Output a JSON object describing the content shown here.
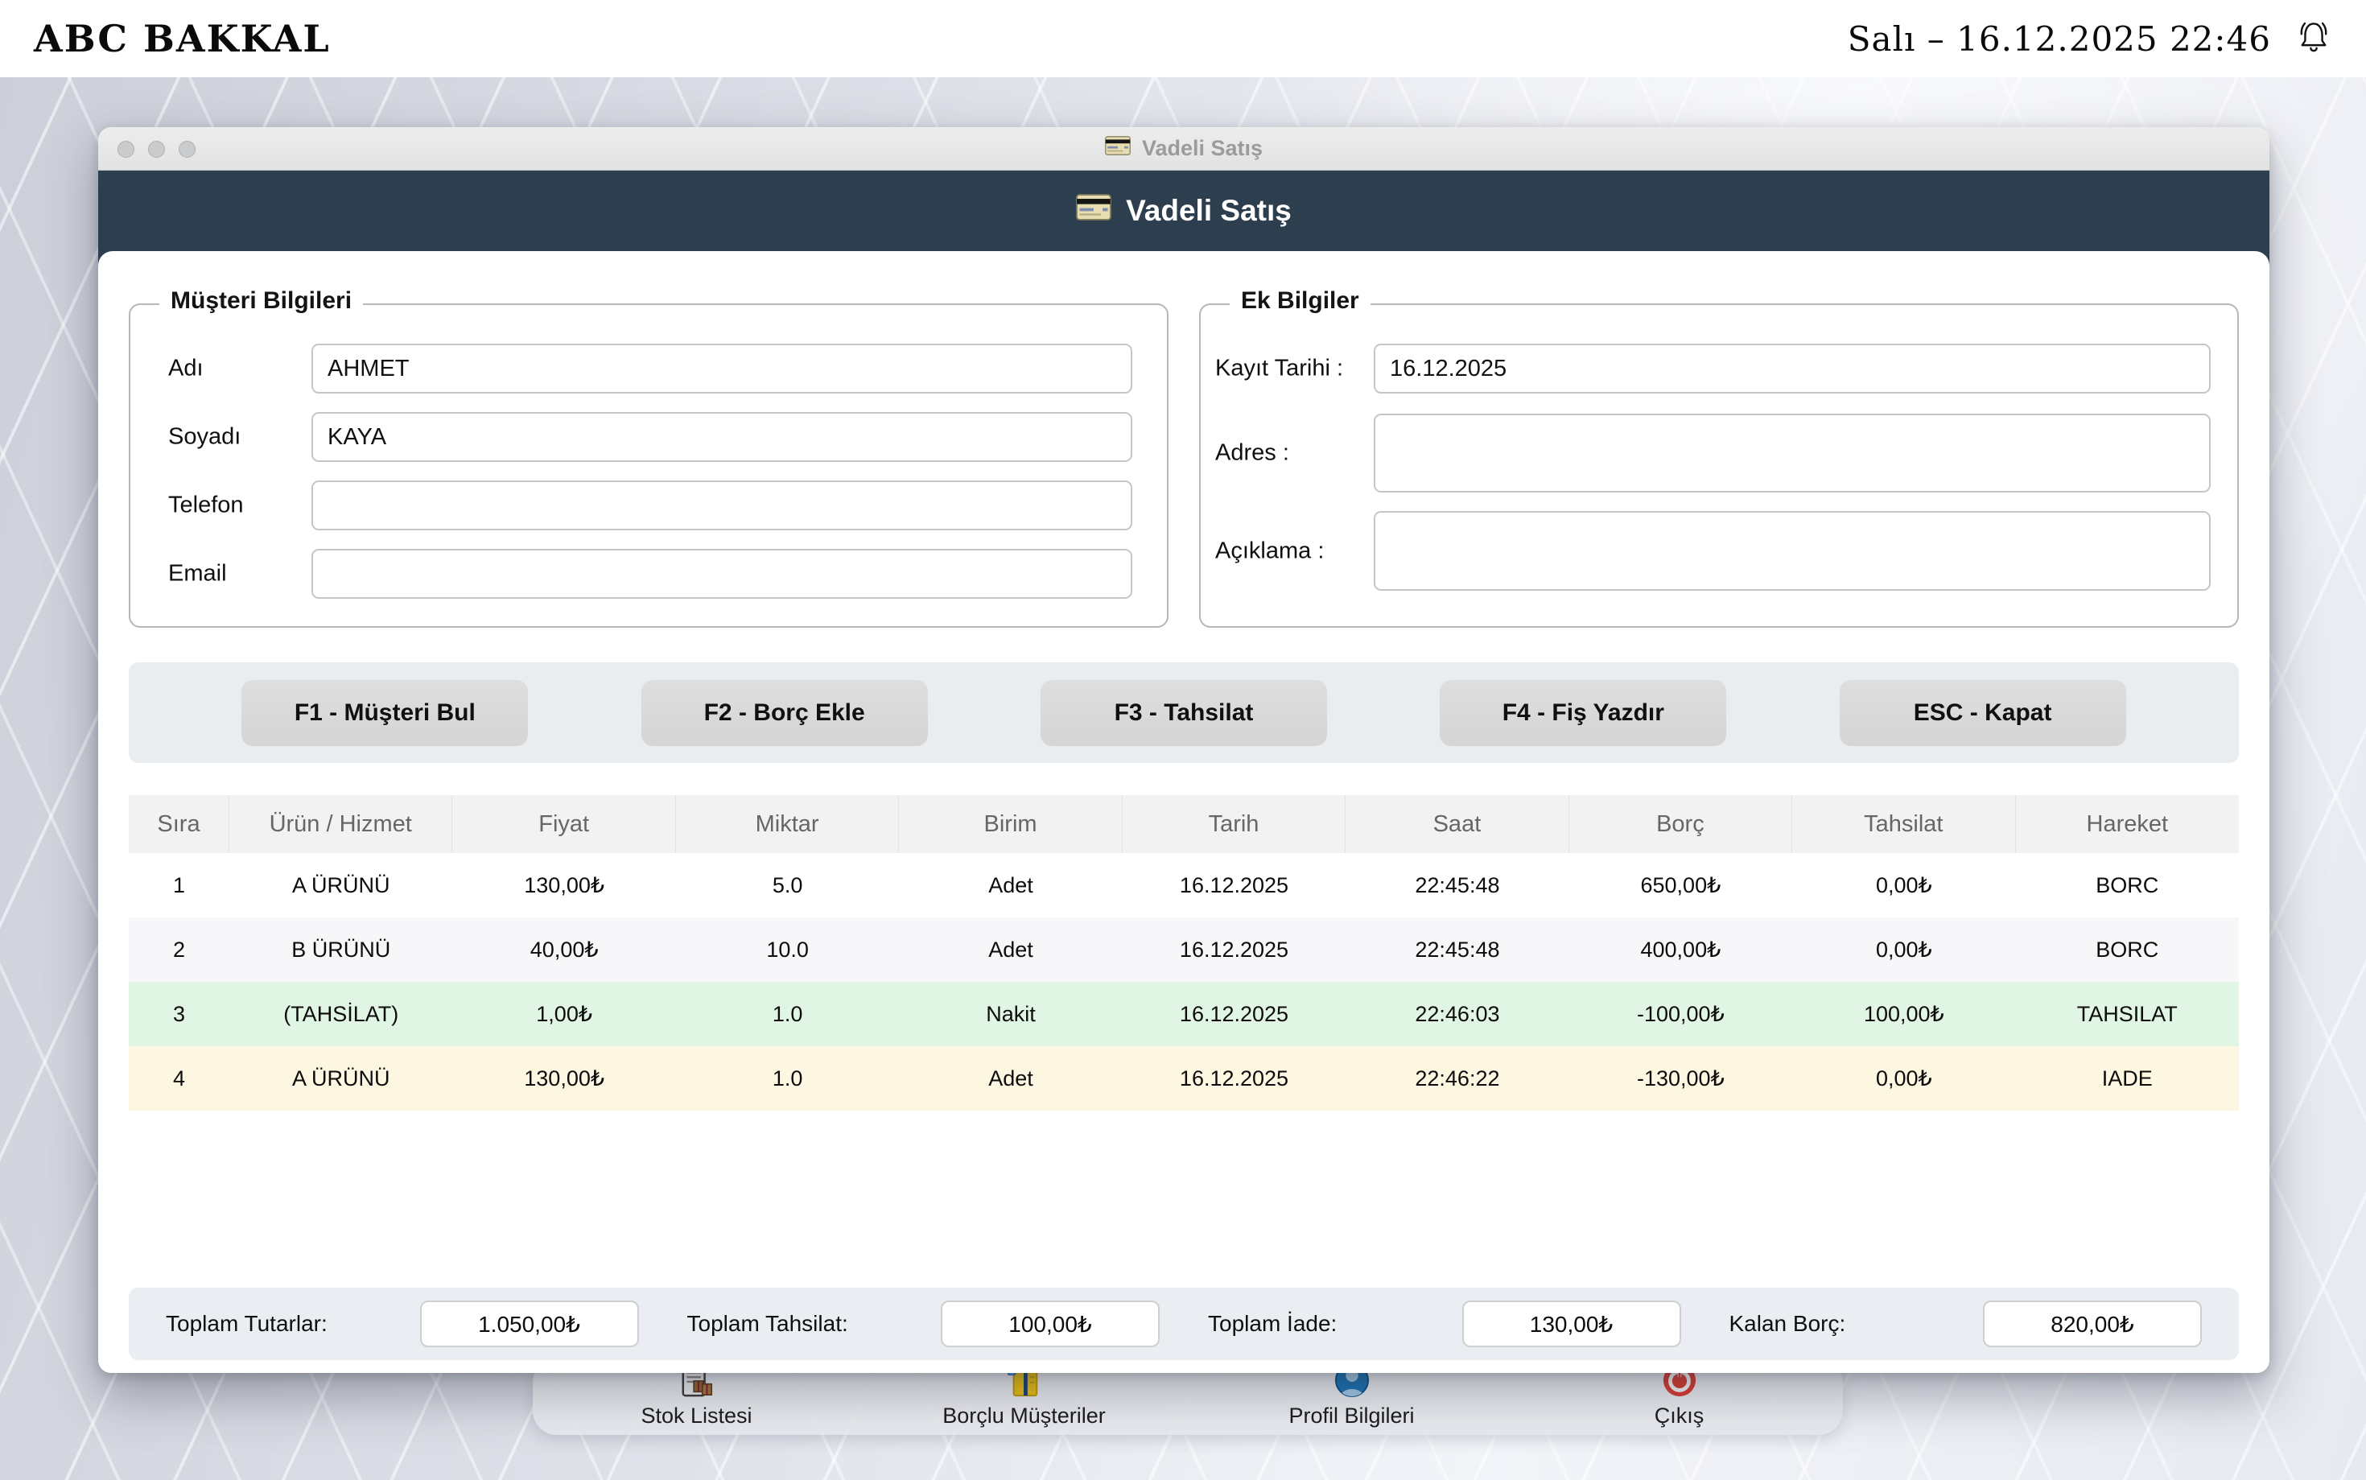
{
  "topbar": {
    "brand": "ABC BAKKAL",
    "datetime": "Salı – 16.12.2025 22:46"
  },
  "window": {
    "titlebar_title": "Vadeli Satış",
    "header_title": "Vadeli Satış"
  },
  "customer_section": {
    "legend": "Müşteri Bilgileri",
    "fields": [
      {
        "label": "Adı",
        "value": "AHMET"
      },
      {
        "label": "Soyadı",
        "value": "KAYA"
      },
      {
        "label": "Telefon",
        "value": ""
      },
      {
        "label": "Email",
        "value": ""
      }
    ]
  },
  "extra_section": {
    "legend": "Ek Bilgiler",
    "fields": [
      {
        "label": "Kayıt Tarihi :",
        "value": "16.12.2025"
      },
      {
        "label": "Adres :",
        "value": ""
      },
      {
        "label": "Açıklama :",
        "value": ""
      }
    ]
  },
  "actions": [
    "F1 - Müşteri Bul",
    "F2 - Borç Ekle",
    "F3 - Tahsilat",
    "F4 - Fiş Yazdır",
    "ESC - Kapat"
  ],
  "table": {
    "columns": [
      "Sıra",
      "Ürün / Hizmet",
      "Fiyat",
      "Miktar",
      "Birim",
      "Tarih",
      "Saat",
      "Borç",
      "Tahsilat",
      "Hareket"
    ],
    "rows": [
      {
        "bg": "#ffffff",
        "cells": [
          "1",
          "A ÜRÜNÜ",
          "130,00₺",
          "5.0",
          "Adet",
          "16.12.2025",
          "22:45:48",
          "650,00₺",
          "0,00₺",
          "BORC"
        ]
      },
      {
        "bg": "#f7f7f9",
        "cells": [
          "2",
          "B ÜRÜNÜ",
          "40,00₺",
          "10.0",
          "Adet",
          "16.12.2025",
          "22:45:48",
          "400,00₺",
          "0,00₺",
          "BORC"
        ]
      },
      {
        "bg": "#e0f5e3",
        "cells": [
          "3",
          "(TAHSİLAT)",
          "1,00₺",
          "1.0",
          "Nakit",
          "16.12.2025",
          "22:46:03",
          "-100,00₺",
          "100,00₺",
          "TAHSILAT"
        ]
      },
      {
        "bg": "#fdf6e1",
        "cells": [
          "4",
          "A ÜRÜNÜ",
          "130,00₺",
          "1.0",
          "Adet",
          "16.12.2025",
          "22:46:22",
          "-130,00₺",
          "0,00₺",
          "IADE"
        ]
      }
    ]
  },
  "totals": [
    {
      "label": "Toplam Tutarlar:",
      "value": "1.050,00₺"
    },
    {
      "label": "Toplam Tahsilat:",
      "value": "100,00₺"
    },
    {
      "label": "Toplam İade:",
      "value": "130,00₺"
    },
    {
      "label": "Kalan Borç:",
      "value": "820,00₺"
    }
  ],
  "dock": [
    {
      "label": "Stok Listesi"
    },
    {
      "label": "Borçlu Müşteriler"
    },
    {
      "label": "Profil Bilgileri"
    },
    {
      "label": "Çıkış"
    }
  ],
  "colors": {
    "header_bg": "#2d3e4f",
    "row_collection_bg": "#e0f5e3",
    "row_refund_bg": "#fdf6e1"
  }
}
